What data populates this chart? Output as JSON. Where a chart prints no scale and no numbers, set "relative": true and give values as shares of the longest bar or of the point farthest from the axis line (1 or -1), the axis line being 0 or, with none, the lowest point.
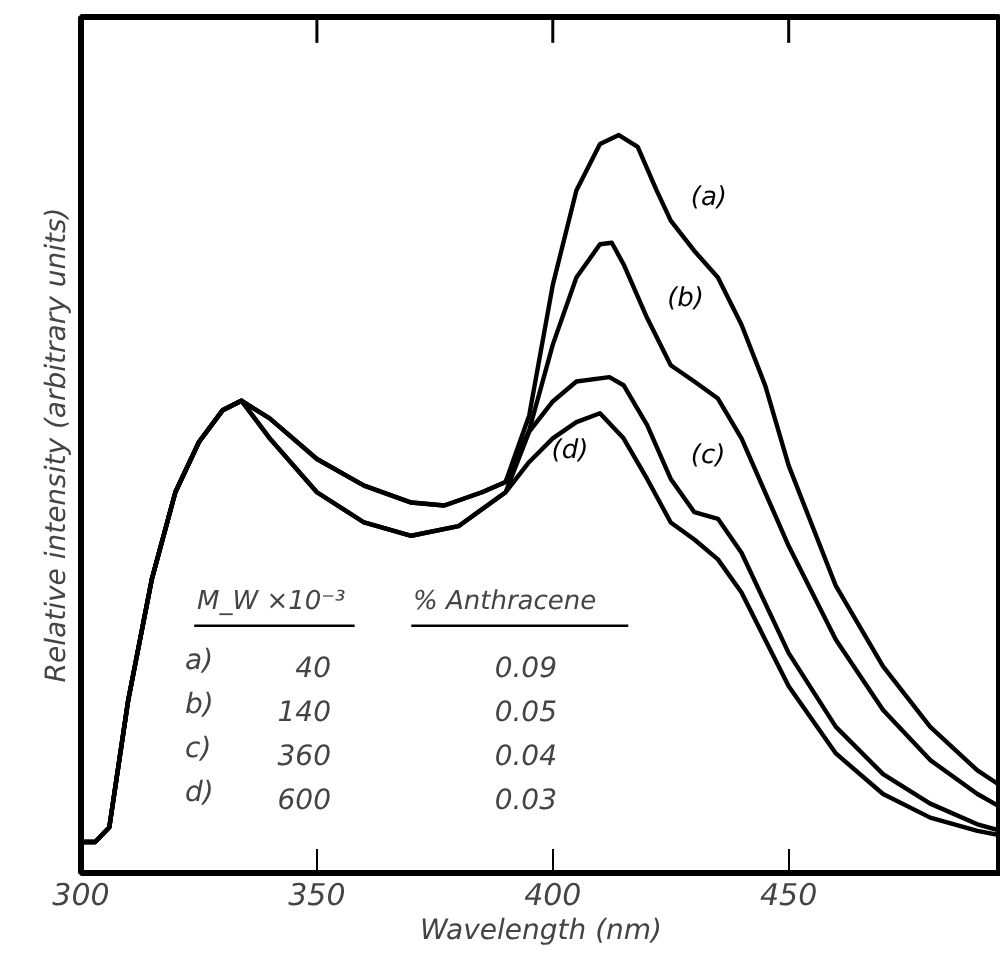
{
  "chart_data": {
    "type": "line",
    "relative": true,
    "xlabel": "Wavelength (nm)",
    "ylabel": "Relative intensity (arbitrary units)",
    "xlim": [
      300,
      495
    ],
    "xticks": [
      300,
      350,
      400,
      450
    ],
    "grid": false,
    "marker": "none",
    "line_style": "solid",
    "series": [
      {
        "name": "(a)",
        "color": "#000000",
        "x": [
          300,
          303,
          306,
          310,
          315,
          320,
          325,
          330,
          334,
          340,
          350,
          360,
          370,
          377,
          385,
          390,
          395,
          400,
          405,
          410,
          414,
          418,
          422,
          425,
          430,
          435,
          440,
          445,
          450,
          460,
          470,
          480,
          490,
          495
        ],
        "values": [
          0.042,
          0.042,
          0.062,
          0.234,
          0.398,
          0.516,
          0.584,
          0.627,
          0.64,
          0.616,
          0.561,
          0.525,
          0.502,
          0.498,
          0.516,
          0.53,
          0.62,
          0.797,
          0.925,
          0.988,
          1.0,
          0.984,
          0.925,
          0.884,
          0.843,
          0.807,
          0.743,
          0.661,
          0.552,
          0.389,
          0.28,
          0.198,
          0.139,
          0.118
        ]
      },
      {
        "name": "(b)",
        "color": "#000000",
        "x": [
          300,
          303,
          306,
          310,
          315,
          320,
          325,
          330,
          334,
          340,
          350,
          360,
          370,
          377,
          385,
          390,
          395,
          400,
          405,
          410,
          412.5,
          415,
          420,
          425,
          430,
          435,
          440,
          450,
          460,
          470,
          480,
          490,
          495
        ],
        "values": [
          0.042,
          0.042,
          0.062,
          0.234,
          0.398,
          0.516,
          0.584,
          0.627,
          0.64,
          0.616,
          0.561,
          0.525,
          0.502,
          0.498,
          0.516,
          0.53,
          0.6,
          0.716,
          0.807,
          0.852,
          0.854,
          0.825,
          0.752,
          0.688,
          0.666,
          0.643,
          0.589,
          0.443,
          0.316,
          0.221,
          0.153,
          0.107,
          0.089
        ]
      },
      {
        "name": "(c)",
        "color": "#000000",
        "x": [
          300,
          303,
          306,
          310,
          315,
          320,
          325,
          330,
          334,
          340,
          350,
          360,
          370,
          380,
          390,
          395,
          400,
          405,
          412,
          415,
          420,
          425,
          430,
          435,
          440,
          450,
          460,
          470,
          480,
          490,
          495
        ],
        "values": [
          0.042,
          0.042,
          0.062,
          0.234,
          0.398,
          0.516,
          0.584,
          0.627,
          0.64,
          0.589,
          0.516,
          0.475,
          0.457,
          0.47,
          0.516,
          0.598,
          0.639,
          0.666,
          0.672,
          0.661,
          0.607,
          0.534,
          0.489,
          0.48,
          0.434,
          0.298,
          0.198,
          0.134,
          0.094,
          0.066,
          0.057
        ]
      },
      {
        "name": "(d)",
        "color": "#000000",
        "x": [
          300,
          303,
          306,
          310,
          315,
          320,
          325,
          330,
          334,
          340,
          350,
          360,
          370,
          380,
          390,
          395,
          400,
          405,
          410,
          415,
          420,
          425,
          430,
          435,
          440,
          450,
          460,
          470,
          480,
          490,
          495
        ],
        "values": [
          0.042,
          0.042,
          0.062,
          0.234,
          0.398,
          0.516,
          0.584,
          0.627,
          0.64,
          0.589,
          0.516,
          0.475,
          0.457,
          0.47,
          0.516,
          0.557,
          0.589,
          0.611,
          0.623,
          0.589,
          0.534,
          0.475,
          0.452,
          0.425,
          0.38,
          0.253,
          0.162,
          0.107,
          0.075,
          0.057,
          0.051
        ]
      }
    ],
    "annotations": [
      "M_W ×10⁻³",
      "% Anthracene",
      "a)  40  0.09",
      "b)  140  0.05",
      "c)  360  0.04",
      "d)  600  0.03"
    ]
  }
}
